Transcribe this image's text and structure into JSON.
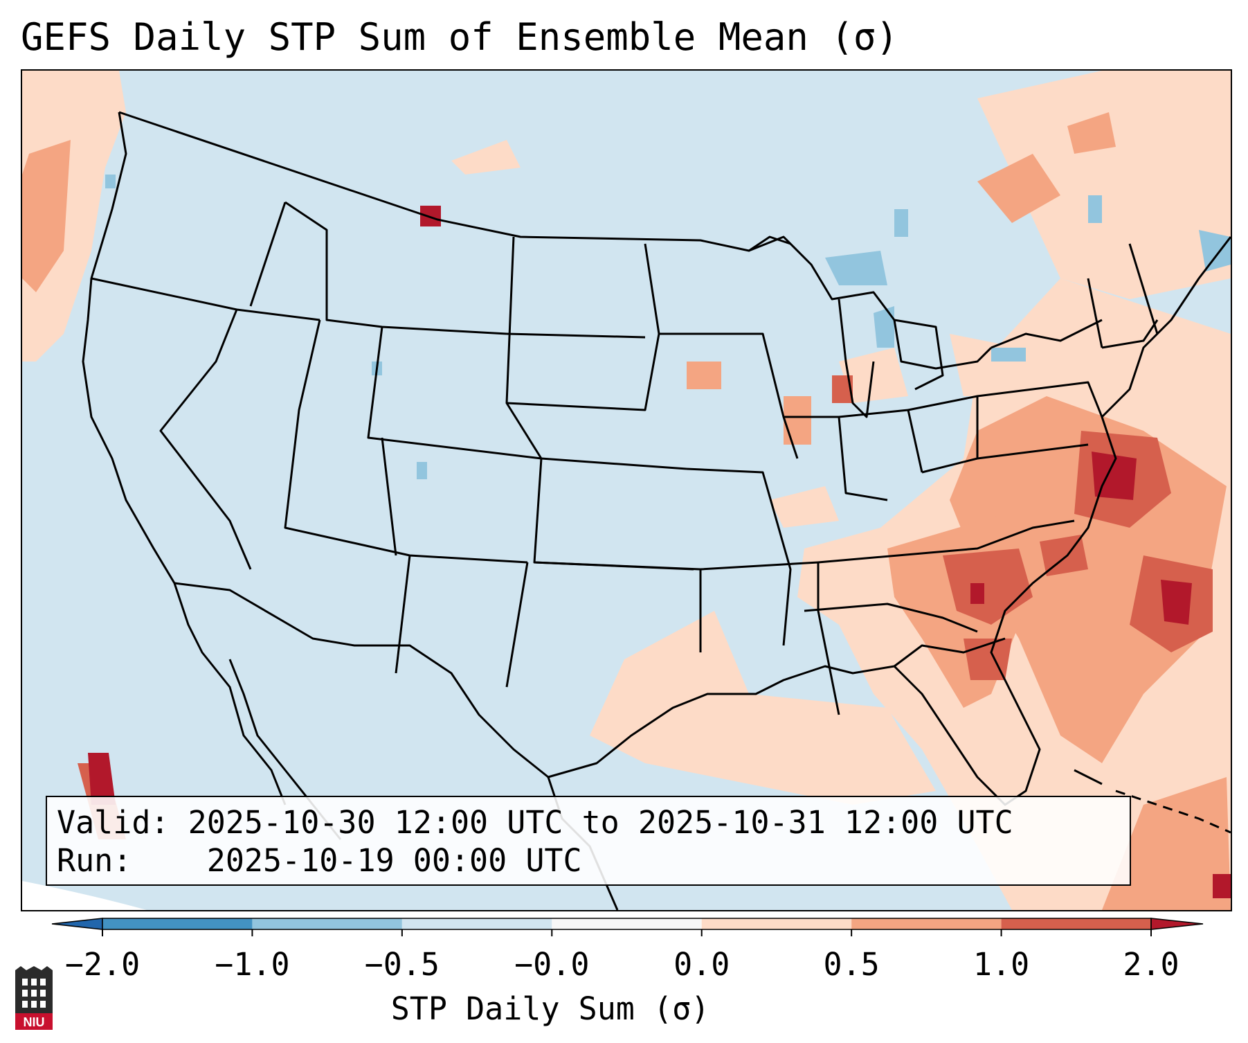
{
  "title": "GEFS Daily STP Sum of Ensemble Mean (σ)",
  "info": {
    "valid_label": "Valid:",
    "valid_value": "2025-10-30 12:00 UTC to 2025-10-31 12:00 UTC",
    "run_label": "Run:",
    "run_value": "2025-10-19 00:00 UTC"
  },
  "colorbar": {
    "label": "STP Daily Sum (σ)",
    "ticks": [
      "−2.0",
      "−1.0",
      "−0.5",
      "−0.0",
      "0.0",
      "0.5",
      "1.0",
      "2.0"
    ],
    "colors": [
      "#4393c3",
      "#92c5de",
      "#d1e5f0",
      "#f7f7f7",
      "#fddbc7",
      "#f4a582",
      "#d6604d",
      "#b2182b"
    ],
    "extend": "both"
  },
  "map": {
    "projection": "Lambert conformal, CONUS",
    "background_category": "-0.5 to -0.0",
    "anomaly_regions": [
      {
        "area": "Mid-Atlantic / Virginia / Chesapeake",
        "level": "1.0 to 2.0+"
      },
      {
        "area": "Carolinas and Georgia",
        "level": "0.5 to 2.0"
      },
      {
        "area": "Offshore Atlantic east of Carolinas",
        "level": "0.5 to 2.0+"
      },
      {
        "area": "Northeast US / New England",
        "level": "0.0 to 1.0"
      },
      {
        "area": "Gulf of Mexico coast",
        "level": "0.0 to 0.5"
      },
      {
        "area": "Pacific Northwest coast",
        "level": "0.0 to 1.0"
      },
      {
        "area": "Lake Michigan",
        "level": "-1.0 to -0.5 and 1.0 to 2.0"
      }
    ]
  },
  "logo": {
    "text": "NIU",
    "name": "niu-logo"
  }
}
